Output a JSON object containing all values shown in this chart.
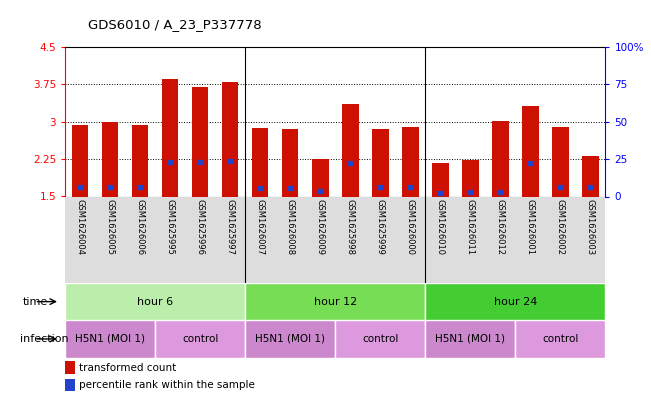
{
  "title": "GDS6010 / A_23_P337778",
  "samples": [
    "GSM1626004",
    "GSM1626005",
    "GSM1626006",
    "GSM1625995",
    "GSM1625996",
    "GSM1625997",
    "GSM1626007",
    "GSM1626008",
    "GSM1626009",
    "GSM1625998",
    "GSM1625999",
    "GSM1626000",
    "GSM1626010",
    "GSM1626011",
    "GSM1626012",
    "GSM1626001",
    "GSM1626002",
    "GSM1626003"
  ],
  "bar_tops": [
    2.93,
    3.0,
    2.94,
    3.87,
    3.7,
    3.8,
    2.88,
    2.85,
    2.25,
    3.35,
    2.85,
    2.9,
    2.17,
    2.24,
    3.01,
    3.32,
    2.9,
    2.32
  ],
  "blue_marks": [
    1.7,
    1.7,
    1.7,
    2.2,
    2.2,
    2.22,
    1.68,
    1.68,
    1.62,
    2.18,
    1.7,
    1.7,
    1.58,
    1.6,
    1.6,
    2.18,
    1.7,
    1.7
  ],
  "bar_bottom": 1.5,
  "ylim_left": [
    1.5,
    4.5
  ],
  "yticks_left": [
    1.5,
    2.25,
    3.0,
    3.75,
    4.5
  ],
  "yticks_right": [
    0,
    25,
    50,
    75,
    100
  ],
  "ytick_labels_left": [
    "1.5",
    "2.25",
    "3",
    "3.75",
    "4.5"
  ],
  "ytick_labels_right": [
    "0",
    "25",
    "50",
    "75",
    "100%"
  ],
  "bar_color": "#cc1100",
  "blue_color": "#2244cc",
  "bg_color": "#ffffff",
  "time_groups": [
    {
      "label": "hour 6",
      "start": 0,
      "end": 6,
      "color": "#bbeeaa"
    },
    {
      "label": "hour 12",
      "start": 6,
      "end": 12,
      "color": "#77dd55"
    },
    {
      "label": "hour 24",
      "start": 12,
      "end": 18,
      "color": "#44cc33"
    }
  ],
  "infection_groups": [
    {
      "label": "H5N1 (MOI 1)",
      "start": 0,
      "end": 3,
      "color": "#cc88cc"
    },
    {
      "label": "control",
      "start": 3,
      "end": 6,
      "color": "#dd99dd"
    },
    {
      "label": "H5N1 (MOI 1)",
      "start": 6,
      "end": 9,
      "color": "#cc88cc"
    },
    {
      "label": "control",
      "start": 9,
      "end": 12,
      "color": "#dd99dd"
    },
    {
      "label": "H5N1 (MOI 1)",
      "start": 12,
      "end": 15,
      "color": "#cc88cc"
    },
    {
      "label": "control",
      "start": 15,
      "end": 18,
      "color": "#dd99dd"
    }
  ],
  "legend_red_label": "transformed count",
  "legend_blue_label": "percentile rank within the sample",
  "bar_width": 0.55,
  "sample_label_color": "#888888",
  "n_samples": 18,
  "group_boundaries": [
    6,
    12
  ]
}
